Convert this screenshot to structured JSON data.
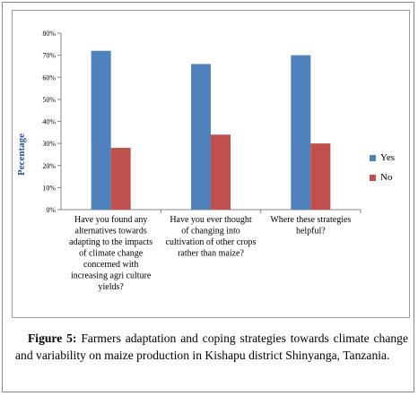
{
  "chart_data": {
    "type": "bar",
    "categories": [
      "Have you found any alternatives towards adapting to the impacts of climate change concerned with increasing agri culture yields?",
      "Have you ever thought of changing into cultivation of other crops rather than maize?",
      "Where these strategies helpful?"
    ],
    "category_lines": [
      [
        "Have you found any",
        "alternatives towards",
        "adapting to the impacts",
        "of climate change",
        "concerned with",
        "increasing agri culture",
        "yields?"
      ],
      [
        "Have you ever thought",
        "of changing into",
        "cultivation of other crops",
        "rather than maize?"
      ],
      [
        "Where these strategies",
        "helpful?"
      ]
    ],
    "series": [
      {
        "name": "Yes",
        "values": [
          72,
          66,
          70
        ],
        "color": "#4f81bd"
      },
      {
        "name": "No",
        "values": [
          28,
          34,
          30
        ],
        "color": "#c0504d"
      }
    ],
    "ylabel": "Pecentage",
    "xlabel": "",
    "ylim": [
      0,
      80
    ],
    "yticks": [
      "0%",
      "10%",
      "20%",
      "30%",
      "40%",
      "50%",
      "60%",
      "70%",
      "80%"
    ],
    "grid": false,
    "legend": "right"
  },
  "caption": {
    "label": "Figure 5:",
    "text": " Farmers adaptation and coping strategies towards climate change and variability on maize production in Kishapu district Shinyanga, Tanzania."
  }
}
